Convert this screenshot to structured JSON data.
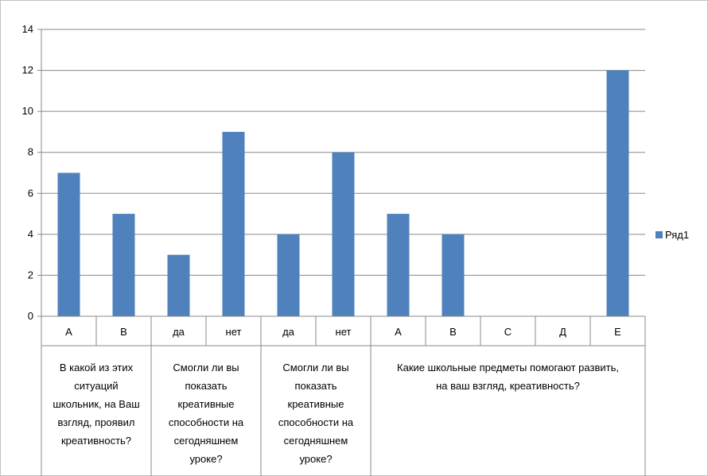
{
  "chart_data": {
    "type": "bar",
    "ylim": [
      0,
      14
    ],
    "yticks": [
      "0",
      "2",
      "4",
      "6",
      "8",
      "10",
      "12",
      "14"
    ],
    "grid": true,
    "legend_position": "right",
    "categories": [
      "A",
      "B",
      "да",
      "нет",
      "да",
      "нет",
      "A",
      "B",
      "C",
      "Д",
      "E"
    ],
    "series": [
      {
        "name": "Ряд1",
        "values": [
          7,
          5,
          3,
          9,
          4,
          8,
          5,
          4,
          0,
          0,
          12
        ],
        "color": "#4f81bd"
      }
    ],
    "groups": [
      {
        "span": 2,
        "lines": [
          "В какой из этих",
          "ситуаций",
          "школьник, на Ваш",
          "взгляд, проявил",
          "креативность?"
        ]
      },
      {
        "span": 2,
        "lines": [
          "Смогли ли вы",
          "показать",
          "креативные",
          "способности на",
          "сегодняшнем",
          "уроке?"
        ]
      },
      {
        "span": 2,
        "lines": [
          "Смогли ли вы",
          "показать",
          "креативные",
          "способности на",
          "сегодняшнем",
          "уроке?"
        ]
      },
      {
        "span": 5,
        "lines": [
          "Какие школьные предметы помогают развить,",
          "на ваш взгляд, креативность?"
        ]
      }
    ]
  }
}
